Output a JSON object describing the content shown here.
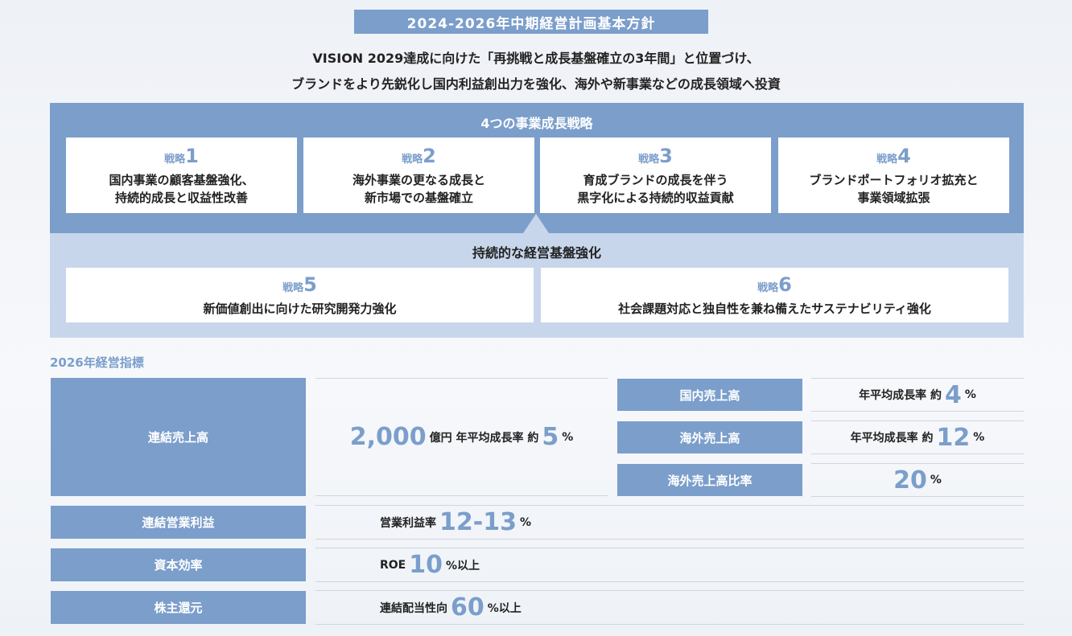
{
  "header": {
    "title": "2024-2026年中期経営計画基本方針",
    "subtitle": [
      "VISION 2029達成に向けた「再挑戦と成長基盤確立の3年間」と位置づけ、",
      "ブランドをより先鋭化し国内利益創出力を強化、海外や新事業などの成長領域へ投資"
    ]
  },
  "growth": {
    "title": "4つの事業成長戦略",
    "strategies": [
      {
        "label": "戦略",
        "number": "1",
        "lines": [
          "国内事業の顧客基盤強化、",
          "持続的成長と収益性改善"
        ]
      },
      {
        "label": "戦略",
        "number": "2",
        "lines": [
          "海外事業の更なる成長と",
          "新市場での基盤確立"
        ]
      },
      {
        "label": "戦略",
        "number": "3",
        "lines": [
          "育成ブランドの成長を伴う",
          "黒字化による持続的収益貢献"
        ]
      },
      {
        "label": "戦略",
        "number": "4",
        "lines": [
          "ブランドポートフォリオ拡充と",
          "事業領域拡張"
        ]
      }
    ]
  },
  "foundation": {
    "title": "持続的な経営基盤強化",
    "strategies": [
      {
        "label": "戦略",
        "number": "5",
        "lines": [
          "新価値創出に向けた研究開発力強化"
        ]
      },
      {
        "label": "戦略",
        "number": "6",
        "lines": [
          "社会課題対応と独自性を兼ね備えたサステナビリティ強化"
        ]
      }
    ]
  },
  "kpi": {
    "title": "2026年経営指標",
    "sales": {
      "label": "連結売上高",
      "value": [
        {
          "text": "2,000",
          "big": true
        },
        {
          "text": "億円 年平均成長率 約"
        },
        {
          "text": "5",
          "big": true
        },
        {
          "text": "%"
        }
      ]
    },
    "breakdown": [
      {
        "label": "国内売上高",
        "value": [
          {
            "text": "年平均成長率 約"
          },
          {
            "text": "4",
            "big": true
          },
          {
            "text": "%"
          }
        ]
      },
      {
        "label": "海外売上高",
        "value": [
          {
            "text": "年平均成長率 約"
          },
          {
            "text": "12",
            "big": true
          },
          {
            "text": "%"
          }
        ]
      },
      {
        "label": "海外売上高比率",
        "value": [
          {
            "text": "20",
            "big": true
          },
          {
            "text": "%"
          }
        ]
      }
    ],
    "rows": [
      {
        "label": "連結営業利益",
        "value": [
          {
            "text": "営業利益率"
          },
          {
            "text": "12-13",
            "big": true
          },
          {
            "text": "%"
          }
        ]
      },
      {
        "label": "資本効率",
        "value": [
          {
            "text": "ROE "
          },
          {
            "text": "10",
            "big": true
          },
          {
            "text": "%以上"
          }
        ]
      },
      {
        "label": "株主還元",
        "value": [
          {
            "text": "連結配当性向"
          },
          {
            "text": "60",
            "big": true
          },
          {
            "text": "%以上"
          }
        ]
      }
    ]
  }
}
